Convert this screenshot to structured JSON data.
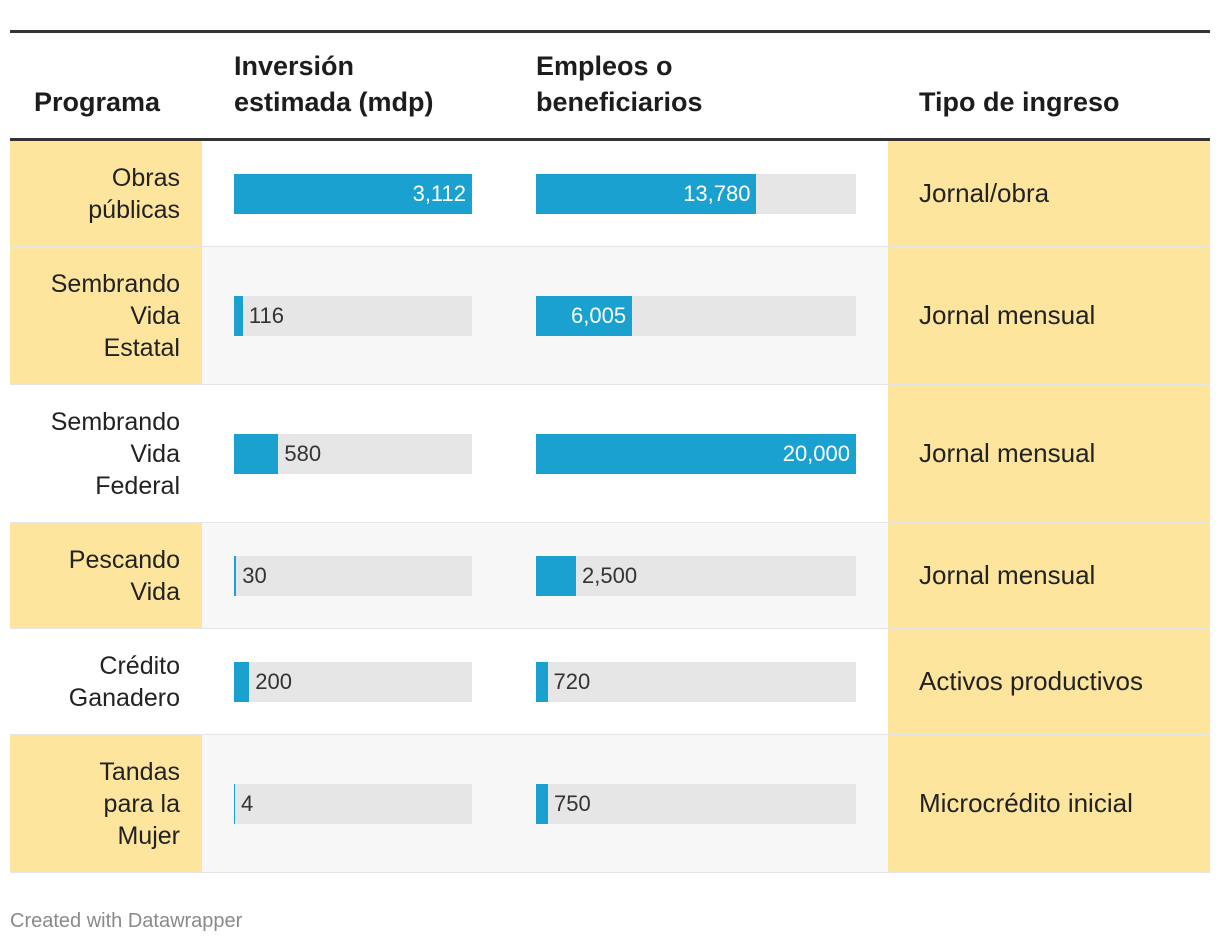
{
  "headers": {
    "programa": "Programa",
    "inversion_line1": "Inversión",
    "inversion_line2": "estimada (mdp)",
    "empleos_line1": "Empleos o",
    "empleos_line2": "beneficiarios",
    "tipo": "Tipo de ingreso"
  },
  "chart_data": {
    "type": "table",
    "columns": [
      "Programa",
      "Inversión estimada (mdp)",
      "Empleos o beneficiarios",
      "Tipo de ingreso"
    ],
    "inversion_max": 3112,
    "empleos_max": 20000,
    "rows": [
      {
        "programa": [
          "Obras",
          "públicas"
        ],
        "inversion": 3112,
        "inversion_label": "3,112",
        "empleos": 13780,
        "empleos_label": "13,780",
        "tipo": "Jornal/obra",
        "highlight": true
      },
      {
        "programa": [
          "Sembrando",
          "Vida",
          "Estatal"
        ],
        "inversion": 116,
        "inversion_label": "116",
        "empleos": 6005,
        "empleos_label": "6,005",
        "tipo": "Jornal mensual",
        "highlight": true
      },
      {
        "programa": [
          "Sembrando",
          "Vida",
          "Federal"
        ],
        "inversion": 580,
        "inversion_label": "580",
        "empleos": 20000,
        "empleos_label": "20,000",
        "tipo": "Jornal mensual",
        "highlight": false
      },
      {
        "programa": [
          "Pescando",
          "Vida"
        ],
        "inversion": 30,
        "inversion_label": "30",
        "empleos": 2500,
        "empleos_label": "2,500",
        "tipo": "Jornal mensual",
        "highlight": true
      },
      {
        "programa": [
          "Crédito",
          "Ganadero"
        ],
        "inversion": 200,
        "inversion_label": "200",
        "empleos": 720,
        "empleos_label": "720",
        "tipo": "Activos productivos",
        "highlight": false
      },
      {
        "programa": [
          "Tandas",
          "para la",
          "Mujer"
        ],
        "inversion": 4,
        "inversion_label": "4",
        "empleos": 750,
        "empleos_label": "750",
        "tipo": "Microcrédito inicial",
        "highlight": true
      }
    ]
  },
  "colors": {
    "bar": "#1aa1d0",
    "track": "#e6e6e6",
    "highlight": "#fde59e",
    "alt_row": "#f7f7f7"
  },
  "footer": "Created with Datawrapper"
}
